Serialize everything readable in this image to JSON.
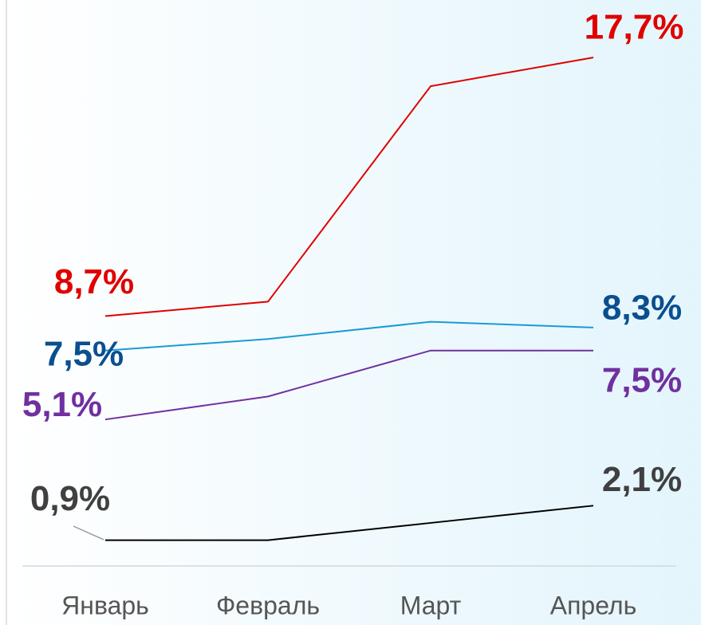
{
  "chart_data": {
    "type": "line",
    "categories": [
      "Январь",
      "Февраль",
      "Март",
      "Апрель"
    ],
    "ylim": [
      0,
      19.7
    ],
    "series": [
      {
        "color": "#e00000",
        "label_color": "#e00000",
        "values": [
          8.7,
          9.2,
          16.7,
          17.7
        ],
        "value_labels": [
          "8,7%",
          null,
          null,
          "17,7%"
        ]
      },
      {
        "color": "#1a9ad6",
        "label_color": "#0a4f8f",
        "values": [
          7.5,
          7.9,
          8.5,
          8.3
        ],
        "value_labels": [
          "7,5%",
          null,
          null,
          "8,3%"
        ]
      },
      {
        "color": "#7030a0",
        "label_color": "#7030a0",
        "values": [
          5.1,
          5.9,
          7.5,
          7.5
        ],
        "value_labels": [
          "5,1%",
          null,
          null,
          "7,5%"
        ]
      },
      {
        "color": "#000000",
        "label_color": "#404040",
        "values": [
          0.9,
          0.9,
          1.5,
          2.1
        ],
        "value_labels": [
          "0,9%",
          null,
          null,
          "2,1%"
        ]
      }
    ]
  }
}
